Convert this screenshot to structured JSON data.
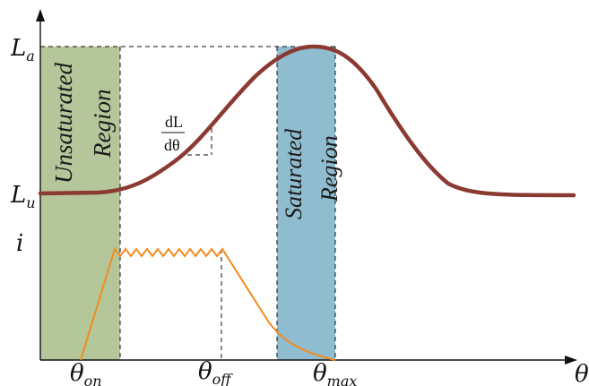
{
  "diagram": {
    "axis_labels": {
      "x_symbol": "θ",
      "l_aligned_main": "L",
      "l_aligned_sub": "a",
      "l_unaligned_main": "L",
      "l_unaligned_sub": "u",
      "current": "i"
    },
    "tick_labels": {
      "theta_on_main": "θ",
      "theta_on_sub": "on",
      "theta_off_main": "θ",
      "theta_off_sub": "off",
      "theta_max_main": "θ",
      "theta_max_sub": "max"
    },
    "regions": {
      "unsaturated_line1": "Unsaturated",
      "unsaturated_line2": "Region",
      "saturated_line1": "Saturated",
      "saturated_line2": "Region"
    },
    "slope": {
      "numerator": "dL",
      "denominator": "dθ"
    },
    "colors": {
      "unsaturated_fill": "#b5c79a",
      "saturated_fill": "#8fbccf",
      "inductance_curve": "#8b3a32",
      "current_curve": "#f28c1e",
      "axis": "#111111"
    }
  }
}
